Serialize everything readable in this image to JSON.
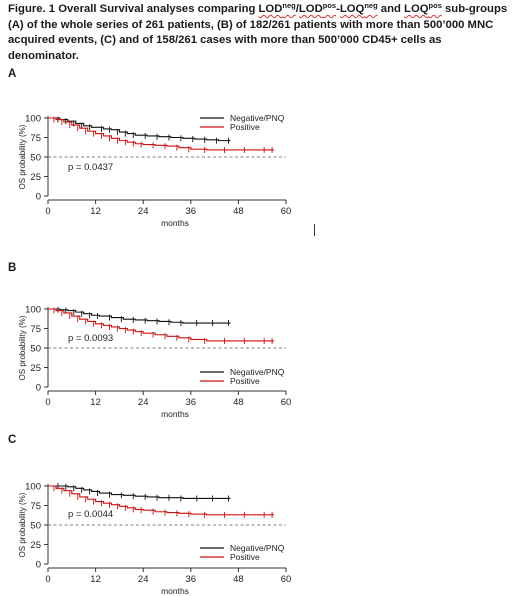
{
  "caption": {
    "lead": "Figure. 1 Overall Survival analyses comparing ",
    "lod_base": "LOD",
    "lod_sup": "neg",
    "slash": "/",
    "lodpos_base": "LOD",
    "lodpos_sup": "pos",
    "dash": "-",
    "loq_base": "LOQ",
    "loq_sup": "neg",
    "and": " and ",
    "loqpos_base": "LOQ",
    "loqpos_sup": "pos",
    "tail": " sub-groups (A) of the whole series of 261 patients, (B) of 182/261 patients with more than 500’000 MNC acquired events, (C) and of 158/261 cases with more than 500’000 CD45+ cells as denominator."
  },
  "colors": {
    "negative": "#111111",
    "positive": "#cc1111",
    "axis": "#333333",
    "reference": "#555555"
  },
  "chart_data": [
    {
      "panel": "A",
      "type": "line",
      "xlabel": "months",
      "ylabel": "OS probability (%)",
      "xlim": [
        0,
        60
      ],
      "ylim": [
        0,
        100
      ],
      "xticks": [
        0,
        12,
        24,
        36,
        48,
        60
      ],
      "yticks": [
        0,
        25,
        50,
        75,
        100
      ],
      "reference_line": 50,
      "p_value": "p = 0.0437",
      "legend_position": "top-right",
      "legend": [
        "Negative/PNQ",
        "Positive"
      ],
      "series": [
        {
          "name": "Negative/PNQ",
          "color": "#111111",
          "x": [
            0,
            3,
            5,
            7,
            9,
            11,
            14,
            16,
            18,
            20,
            22,
            25,
            28,
            31,
            34,
            37,
            40,
            43,
            46
          ],
          "y": [
            100,
            98,
            96,
            93,
            90,
            88,
            86,
            85,
            82,
            80,
            78,
            77,
            76,
            75,
            74,
            73,
            72,
            71,
            71
          ]
        },
        {
          "name": "Positive",
          "color": "#cc1111",
          "x": [
            0,
            2,
            4,
            6,
            8,
            10,
            12,
            14,
            16,
            18,
            20,
            22,
            24,
            27,
            30,
            33,
            36,
            40,
            45,
            50,
            55,
            57
          ],
          "y": [
            100,
            98,
            95,
            91,
            87,
            83,
            80,
            77,
            74,
            71,
            69,
            67,
            66,
            65,
            64,
            62,
            60,
            59,
            59,
            59,
            59,
            59
          ]
        }
      ]
    },
    {
      "panel": "B",
      "type": "line",
      "xlabel": "months",
      "ylabel": "OS probability (%)",
      "xlim": [
        0,
        60
      ],
      "ylim": [
        0,
        100
      ],
      "xticks": [
        0,
        12,
        24,
        36,
        48,
        60
      ],
      "yticks": [
        0,
        25,
        50,
        75,
        100
      ],
      "reference_line": 50,
      "p_value": "p = 0.0093",
      "legend_position": "bottom-right",
      "legend": [
        "Negative/PNQ",
        "Positive"
      ],
      "series": [
        {
          "name": "Negative/PNQ",
          "color": "#111111",
          "x": [
            0,
            3,
            5,
            7,
            9,
            11,
            13,
            16,
            19,
            22,
            25,
            28,
            31,
            34,
            38,
            42,
            46
          ],
          "y": [
            100,
            99,
            98,
            96,
            94,
            92,
            91,
            89,
            87,
            86,
            85,
            84,
            83,
            82,
            82,
            82,
            82
          ]
        },
        {
          "name": "Positive",
          "color": "#cc1111",
          "x": [
            0,
            2,
            4,
            6,
            8,
            10,
            12,
            14,
            16,
            18,
            20,
            22,
            24,
            27,
            30,
            33,
            36,
            40,
            45,
            50,
            55,
            57
          ],
          "y": [
            100,
            98,
            95,
            91,
            87,
            84,
            81,
            79,
            77,
            75,
            73,
            71,
            69,
            67,
            65,
            63,
            61,
            59,
            59,
            59,
            59,
            59
          ]
        }
      ]
    },
    {
      "panel": "C",
      "type": "line",
      "xlabel": "months",
      "ylabel": "OS probability (%)",
      "xlim": [
        0,
        60
      ],
      "ylim": [
        0,
        100
      ],
      "xticks": [
        0,
        12,
        24,
        36,
        48,
        60
      ],
      "yticks": [
        0,
        25,
        50,
        75,
        100
      ],
      "reference_line": 50,
      "p_value": "p = 0.0044",
      "legend_position": "bottom-right",
      "legend": [
        "Negative/PNQ",
        "Positive"
      ],
      "series": [
        {
          "name": "Negative/PNQ",
          "color": "#111111",
          "x": [
            0,
            3,
            5,
            7,
            9,
            11,
            13,
            16,
            19,
            22,
            25,
            28,
            31,
            34,
            38,
            42,
            46
          ],
          "y": [
            100,
            100,
            99,
            97,
            95,
            93,
            91,
            89,
            88,
            87,
            86,
            85,
            85,
            84,
            84,
            84,
            84
          ]
        },
        {
          "name": "Positive",
          "color": "#cc1111",
          "x": [
            0,
            2,
            4,
            6,
            8,
            10,
            12,
            14,
            16,
            18,
            20,
            22,
            24,
            27,
            30,
            33,
            36,
            40,
            45,
            50,
            55,
            57
          ],
          "y": [
            100,
            97,
            94,
            90,
            86,
            83,
            80,
            78,
            76,
            74,
            72,
            70,
            69,
            67,
            66,
            65,
            64,
            63,
            63,
            63,
            63,
            63
          ]
        }
      ]
    }
  ]
}
